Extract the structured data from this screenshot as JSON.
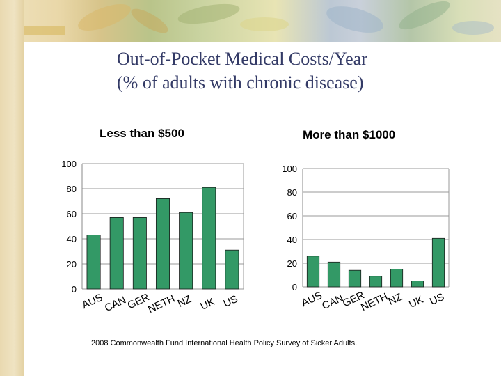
{
  "slide": {
    "title_line1": "Out-of-Pocket Medical Costs/Year",
    "title_line2": "(% of adults with chronic disease)",
    "source": "2008 Commonwealth Fund International Health Policy Survey of Sicker Adults.",
    "bar_color": "#339966",
    "title_color": "#333a66"
  },
  "chart_data": [
    {
      "type": "bar",
      "title": "Less than $500",
      "categories": [
        "AUS",
        "CAN",
        "GER",
        "NETH",
        "NZ",
        "UK",
        "US"
      ],
      "values": [
        43,
        57,
        57,
        72,
        61,
        81,
        31
      ],
      "yticks": [
        "0",
        "20",
        "40",
        "60",
        "80",
        "100"
      ],
      "ylim": [
        0,
        100
      ],
      "xlabel": "",
      "ylabel": "",
      "grid": true
    },
    {
      "type": "bar",
      "title": "More than $1000",
      "categories": [
        "AUS",
        "CAN",
        "GER",
        "NETH",
        "NZ",
        "UK",
        "US"
      ],
      "values": [
        26,
        21,
        14,
        9,
        15,
        5,
        41
      ],
      "yticks": [
        "0",
        "20",
        "40",
        "60",
        "80",
        "100"
      ],
      "ylim": [
        0,
        100
      ],
      "xlabel": "",
      "ylabel": "",
      "grid": true
    }
  ]
}
